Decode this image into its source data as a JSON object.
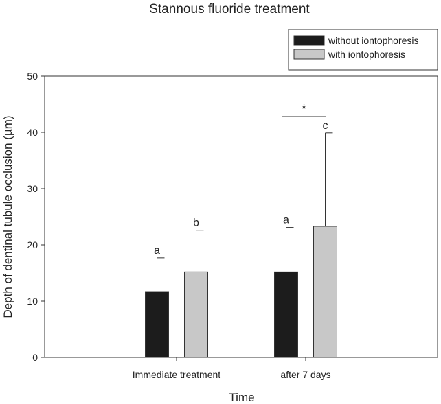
{
  "chart_data": {
    "type": "bar",
    "title": "Stannous fluoride treatment",
    "xlabel": "Time",
    "ylabel": "Depth of dentinal tubule occlusion (µm)",
    "ylim": [
      0,
      50
    ],
    "yticks": [
      0,
      10,
      20,
      30,
      40,
      50
    ],
    "categories": [
      "Immediate treatment",
      "after 7 days"
    ],
    "series": [
      {
        "name": "without iontophoresis",
        "color": "#1c1c1c",
        "values": [
          11.7,
          15.2
        ],
        "error": [
          6.0,
          7.9
        ],
        "labels": [
          "a",
          "a"
        ]
      },
      {
        "name": "with iontophoresis",
        "color": "#c8c8c8",
        "values": [
          15.2,
          23.3
        ],
        "error": [
          7.4,
          16.6
        ],
        "labels": [
          "b",
          "c"
        ]
      }
    ],
    "significance": [
      {
        "category": "after 7 days",
        "marker": "*",
        "y": 42.8
      }
    ],
    "legend_position": "top-right",
    "grid": false
  }
}
